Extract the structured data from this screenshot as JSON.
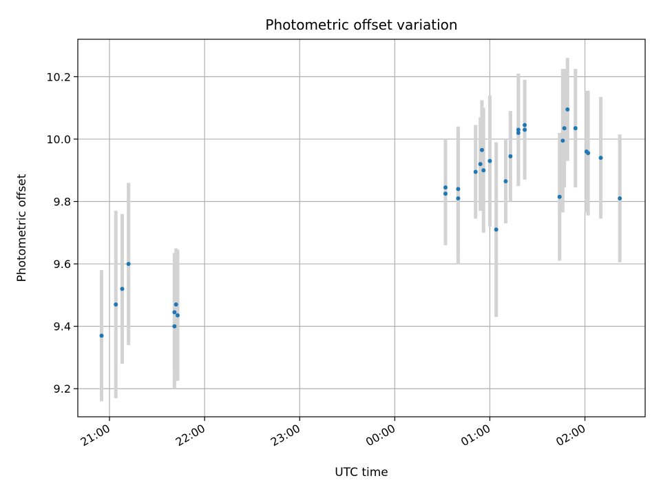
{
  "chart_data": {
    "type": "scatter",
    "title": "Photometric offset variation",
    "xlabel": "UTC time",
    "ylabel": "Photometric offset",
    "grid": true,
    "x_axis": "time",
    "xlim": [
      "20:40",
      "02:38"
    ],
    "ylim": [
      9.11,
      10.32
    ],
    "x_ticks": [
      "21:00",
      "22:00",
      "23:00",
      "00:00",
      "01:00",
      "02:00"
    ],
    "y_ticks": [
      "9.2",
      "9.4",
      "9.6",
      "9.8",
      "10.0",
      "10.2"
    ],
    "point_color": "#1f77b4",
    "errorbar_color": "#d3d3d3",
    "points": [
      {
        "x": "20:55",
        "y": 9.37,
        "err": 0.21
      },
      {
        "x": "21:04",
        "y": 9.47,
        "err": 0.3
      },
      {
        "x": "21:08",
        "y": 9.52,
        "err": 0.24
      },
      {
        "x": "21:12",
        "y": 9.6,
        "err": 0.26
      },
      {
        "x": "21:41",
        "y": 9.4,
        "err": 0.2
      },
      {
        "x": "21:41",
        "y": 9.445,
        "err": 0.19
      },
      {
        "x": "21:42",
        "y": 9.47,
        "err": 0.18
      },
      {
        "x": "21:43",
        "y": 9.435,
        "err": 0.21
      },
      {
        "x": "00:32",
        "y": 9.845,
        "err": 0.155
      },
      {
        "x": "00:32",
        "y": 9.825,
        "err": 0.165
      },
      {
        "x": "00:40",
        "y": 9.84,
        "err": 0.2
      },
      {
        "x": "00:40",
        "y": 9.81,
        "err": 0.21
      },
      {
        "x": "00:51",
        "y": 9.895,
        "err": 0.15
      },
      {
        "x": "00:54",
        "y": 9.92,
        "err": 0.15
      },
      {
        "x": "00:55",
        "y": 9.965,
        "err": 0.16
      },
      {
        "x": "00:56",
        "y": 9.9,
        "err": 0.2
      },
      {
        "x": "01:00",
        "y": 9.93,
        "err": 0.21
      },
      {
        "x": "01:04",
        "y": 9.71,
        "err": 0.28
      },
      {
        "x": "01:10",
        "y": 9.865,
        "err": 0.135
      },
      {
        "x": "01:13",
        "y": 9.945,
        "err": 0.145
      },
      {
        "x": "01:18",
        "y": 10.03,
        "err": 0.18
      },
      {
        "x": "01:18",
        "y": 10.02,
        "err": 0.17
      },
      {
        "x": "01:22",
        "y": 10.045,
        "err": 0.145
      },
      {
        "x": "01:22",
        "y": 10.03,
        "err": 0.16
      },
      {
        "x": "01:44",
        "y": 9.815,
        "err": 0.205
      },
      {
        "x": "01:46",
        "y": 9.995,
        "err": 0.23
      },
      {
        "x": "01:47",
        "y": 10.035,
        "err": 0.19
      },
      {
        "x": "01:49",
        "y": 10.095,
        "err": 0.165
      },
      {
        "x": "01:54",
        "y": 10.035,
        "err": 0.19
      },
      {
        "x": "02:01",
        "y": 9.96,
        "err": 0.195
      },
      {
        "x": "02:02",
        "y": 9.955,
        "err": 0.2
      },
      {
        "x": "02:10",
        "y": 9.94,
        "err": 0.195
      },
      {
        "x": "02:22",
        "y": 9.81,
        "err": 0.205
      }
    ]
  }
}
